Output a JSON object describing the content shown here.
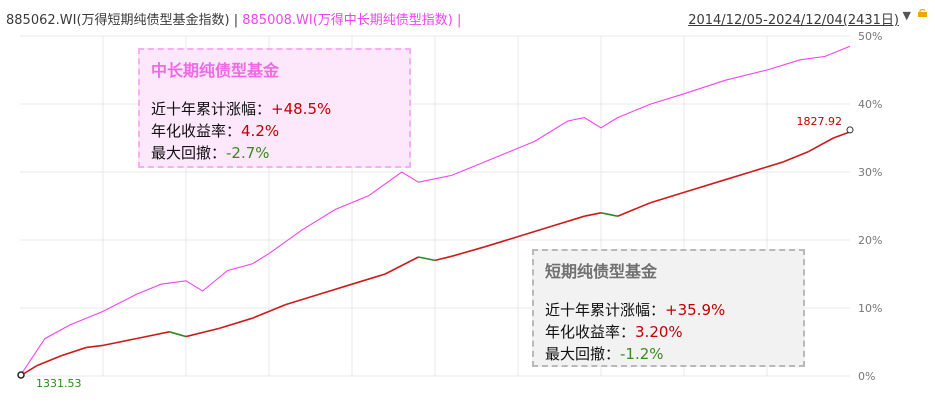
{
  "header": {
    "code_a": "885062.WI(万得短期纯债型基金指数)",
    "sep": "|",
    "code_b": "885008.WI(万得中长期纯债型指数)",
    "sep2": "|",
    "date_range": "2014/12/05-2024/12/04(2431日)",
    "dropdown_icon": "triangle-down",
    "lock_icon": "lock"
  },
  "colors": {
    "mid_long_line": "#ee44ee",
    "short_line_up": "#cc1b1b",
    "short_line_down": "#2d8a1f",
    "grid": "#e9e9e9",
    "axis_text": "#777777"
  },
  "box_mid_long": {
    "title": "中长期纯债型基金",
    "cum_label": "近十年累计涨幅：",
    "cum_value": "+48.5%",
    "ann_label": "年化收益率：",
    "ann_value": "4.2%",
    "mdd_label": "最大回撤：",
    "mdd_value": "-2.7%"
  },
  "box_short": {
    "title": "短期纯债型基金",
    "cum_label": "近十年累计涨幅：",
    "cum_value": "+35.9%",
    "ann_label": "年化收益率：",
    "ann_value": "3.20%",
    "mdd_label": "最大回撤：",
    "mdd_value": "-1.2%"
  },
  "chart_data": {
    "type": "line",
    "title": "",
    "xlabel": "",
    "ylabel": "",
    "ylim": [
      0,
      50
    ],
    "yticks": [
      "50%",
      "40%",
      "30%",
      "20%",
      "10%",
      "0%"
    ],
    "grid": true,
    "x_range": [
      "2014/12/05",
      "2024/12/04"
    ],
    "annotations": {
      "end_label": "1827.92",
      "start_label": "1331.53"
    },
    "series": [
      {
        "name": "",
        "key": "mid_long",
        "x": [
          0,
          0.03,
          0.06,
          0.1,
          0.14,
          0.17,
          0.2,
          0.22,
          0.25,
          0.28,
          0.3,
          0.34,
          0.38,
          0.42,
          0.46,
          0.48,
          0.5,
          0.52,
          0.55,
          0.58,
          0.62,
          0.66,
          0.68,
          0.7,
          0.72,
          0.76,
          0.8,
          0.85,
          0.9,
          0.94,
          0.97,
          1.0
        ],
        "values": [
          0,
          5.5,
          7.5,
          9.5,
          12.0,
          13.5,
          14.0,
          12.5,
          15.5,
          16.5,
          18.0,
          21.5,
          24.5,
          26.5,
          30.0,
          28.5,
          29.0,
          29.5,
          31.0,
          32.5,
          34.5,
          37.5,
          38.0,
          36.5,
          38.0,
          40.0,
          41.5,
          43.5,
          45.0,
          46.5,
          47.0,
          48.5
        ]
      },
      {
        "name": "",
        "key": "short",
        "x": [
          0,
          0.02,
          0.05,
          0.08,
          0.1,
          0.14,
          0.18,
          0.2,
          0.24,
          0.28,
          0.32,
          0.36,
          0.4,
          0.44,
          0.48,
          0.5,
          0.52,
          0.56,
          0.6,
          0.64,
          0.68,
          0.7,
          0.72,
          0.76,
          0.8,
          0.84,
          0.88,
          0.92,
          0.95,
          0.98,
          1.0
        ],
        "values": [
          0,
          1.5,
          3.0,
          4.2,
          4.5,
          5.5,
          6.5,
          5.8,
          7.0,
          8.5,
          10.5,
          12.0,
          13.5,
          15.0,
          17.5,
          17.0,
          17.6,
          19.0,
          20.5,
          22.0,
          23.5,
          24.0,
          23.5,
          25.5,
          27.0,
          28.5,
          30.0,
          31.5,
          33.0,
          35.0,
          35.9
        ]
      }
    ]
  }
}
